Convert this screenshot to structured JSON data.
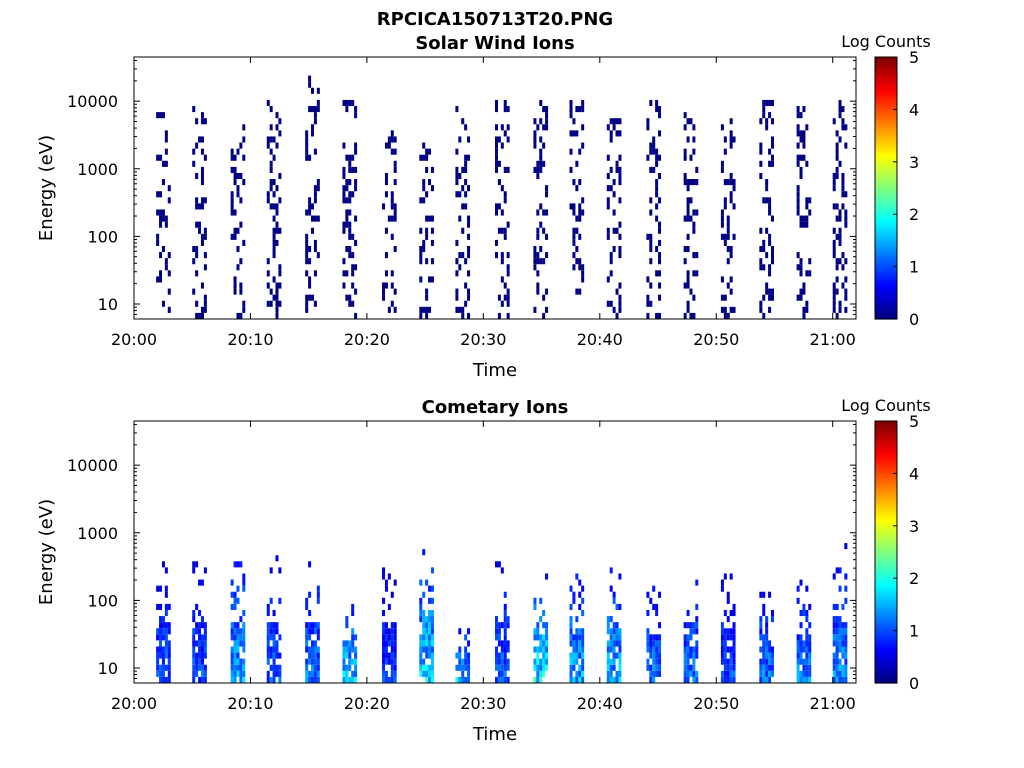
{
  "figure_title": "RPCICA150713T20.PNG",
  "chart_data": [
    {
      "type": "heatmap",
      "title": "Solar Wind Ions",
      "xlabel": "Time",
      "ylabel": "Energy (eV)",
      "x_tick_labels": [
        "20:00",
        "20:10",
        "20:20",
        "20:30",
        "20:40",
        "20:50",
        "21:00"
      ],
      "xlim": [
        "20:00",
        "21:02"
      ],
      "y_scale": "log",
      "y_tick_labels": [
        "10",
        "100",
        "1000",
        "10000"
      ],
      "ylim": [
        6,
        45000
      ],
      "colorbar": {
        "label": "Log Counts",
        "range": [
          0,
          5
        ],
        "tick_labels": [
          "0",
          "1",
          "2",
          "3",
          "4",
          "5"
        ],
        "colormap": "jet"
      },
      "sweeps": [
        {
          "t": 2.4,
          "low": 6,
          "high": 6500,
          "level": 0.05
        },
        {
          "t": 5.5,
          "low": 6,
          "high": 7500,
          "level": 0.05
        },
        {
          "t": 8.8,
          "low": 6,
          "high": 5500,
          "level": 0.05
        },
        {
          "t": 11.9,
          "low": 6,
          "high": 8500,
          "level": 0.05
        },
        {
          "t": 15.2,
          "low": 6,
          "high": 20000,
          "level": 0.05
        },
        {
          "t": 18.4,
          "low": 6,
          "high": 9000,
          "level": 0.05
        },
        {
          "t": 21.8,
          "low": 6,
          "high": 3500,
          "level": 0.05
        },
        {
          "t": 25.0,
          "low": 6,
          "high": 2000,
          "level": 0.05
        },
        {
          "t": 28.1,
          "low": 6,
          "high": 8000,
          "level": 0.05
        },
        {
          "t": 31.5,
          "low": 6,
          "high": 11000,
          "level": 0.05
        },
        {
          "t": 34.8,
          "low": 6,
          "high": 9000,
          "level": 0.05
        },
        {
          "t": 37.9,
          "low": 6,
          "high": 10000,
          "level": 0.05
        },
        {
          "t": 41.1,
          "low": 6,
          "high": 5000,
          "level": 0.05
        },
        {
          "t": 44.5,
          "low": 6,
          "high": 10000,
          "level": 0.05
        },
        {
          "t": 47.7,
          "low": 6,
          "high": 7000,
          "level": 0.05
        },
        {
          "t": 50.9,
          "low": 6,
          "high": 5000,
          "level": 0.05
        },
        {
          "t": 54.2,
          "low": 6,
          "high": 10000,
          "level": 0.05
        },
        {
          "t": 57.4,
          "low": 6,
          "high": 8000,
          "level": 0.05
        },
        {
          "t": 60.5,
          "low": 6,
          "high": 9000,
          "level": 0.05
        }
      ]
    },
    {
      "type": "heatmap",
      "title": "Cometary Ions",
      "xlabel": "Time",
      "ylabel": "Energy (eV)",
      "x_tick_labels": [
        "20:00",
        "20:10",
        "20:20",
        "20:30",
        "20:40",
        "20:50",
        "21:00"
      ],
      "xlim": [
        "20:00",
        "21:02"
      ],
      "y_scale": "log",
      "y_tick_labels": [
        "10",
        "100",
        "1000",
        "10000"
      ],
      "ylim": [
        6,
        45000
      ],
      "colorbar": {
        "label": "Log Counts",
        "range": [
          0,
          5
        ],
        "tick_labels": [
          "0",
          "1",
          "2",
          "3",
          "4",
          "5"
        ],
        "colormap": "jet"
      },
      "sweeps": [
        {
          "t": 2.4,
          "low": 6,
          "high": 400,
          "level": 1.2
        },
        {
          "t": 5.5,
          "low": 6,
          "high": 500,
          "level": 1.1
        },
        {
          "t": 8.8,
          "low": 6,
          "high": 400,
          "level": 1.6
        },
        {
          "t": 11.9,
          "low": 6,
          "high": 450,
          "level": 1.2
        },
        {
          "t": 15.2,
          "low": 6,
          "high": 400,
          "level": 1.3
        },
        {
          "t": 18.4,
          "low": 6,
          "high": 100,
          "level": 1.8
        },
        {
          "t": 21.8,
          "low": 6,
          "high": 450,
          "level": 1.0
        },
        {
          "t": 25.0,
          "low": 6,
          "high": 650,
          "level": 1.8
        },
        {
          "t": 28.1,
          "low": 6,
          "high": 40,
          "level": 1.7
        },
        {
          "t": 31.5,
          "low": 6,
          "high": 500,
          "level": 1.2
        },
        {
          "t": 34.8,
          "low": 6,
          "high": 250,
          "level": 1.9
        },
        {
          "t": 37.9,
          "low": 6,
          "high": 250,
          "level": 1.6
        },
        {
          "t": 41.1,
          "low": 6,
          "high": 300,
          "level": 1.6
        },
        {
          "t": 44.5,
          "low": 6,
          "high": 200,
          "level": 1.3
        },
        {
          "t": 47.7,
          "low": 6,
          "high": 450,
          "level": 1.3
        },
        {
          "t": 50.9,
          "low": 6,
          "high": 250,
          "level": 1.1
        },
        {
          "t": 54.2,
          "low": 6,
          "high": 200,
          "level": 1.3
        },
        {
          "t": 57.4,
          "low": 6,
          "high": 200,
          "level": 1.4
        },
        {
          "t": 60.5,
          "low": 6,
          "high": 750,
          "level": 1.4
        }
      ]
    }
  ]
}
